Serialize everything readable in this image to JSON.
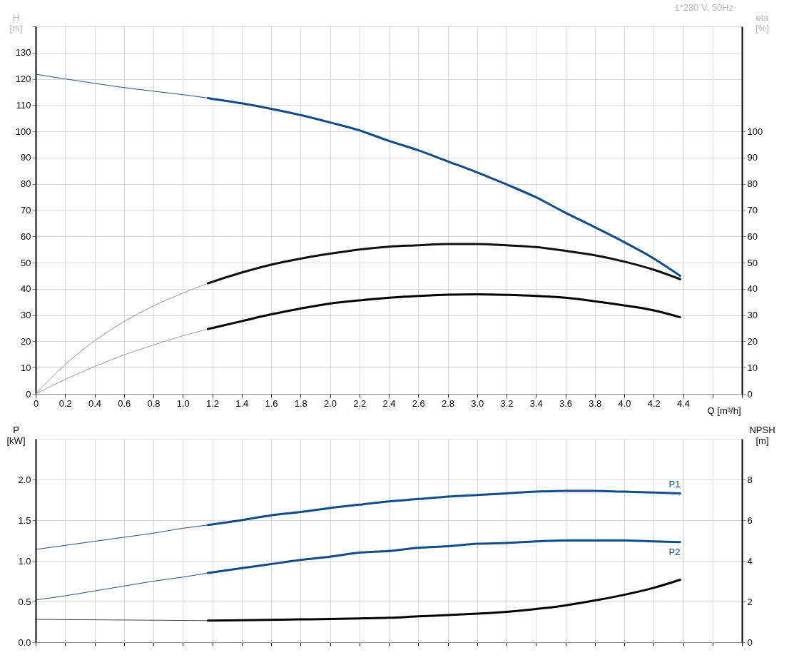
{
  "chart_data": [
    {
      "type": "line",
      "xlabel": "Q [m³/h]",
      "ylabel": "H\n[m]",
      "y2label": "eta\n[%]",
      "annotations": [
        "1*230 V, 50Hz"
      ],
      "grid": true,
      "xlim": [
        0,
        4.8
      ],
      "xticks": [
        0,
        0.2,
        0.4,
        0.6,
        0.8,
        {
          "value": 1,
          "label": "1.0"
        },
        1.2,
        1.4,
        1.6,
        1.8,
        {
          "value": 2,
          "label": "2.0"
        },
        2.2,
        2.4,
        2.6,
        2.8,
        {
          "value": 3,
          "label": "3.0"
        },
        3.2,
        3.4,
        3.6,
        3.8,
        {
          "value": 4,
          "label": "4.0"
        },
        4.2,
        4.4,
        {
          "value": 4.6,
          "label": null
        },
        {
          "value": 4.8,
          "label": null
        }
      ],
      "ylim": [
        0,
        140
      ],
      "yticks": [
        0,
        10,
        20,
        30,
        40,
        50,
        60,
        70,
        80,
        90,
        100,
        110,
        120,
        130,
        {
          "value": 140,
          "label": null
        }
      ],
      "y2lim": [
        0,
        140
      ],
      "y2ticks": [
        0,
        10,
        20,
        30,
        40,
        50,
        60,
        70,
        80,
        90,
        100
      ],
      "series": [
        {
          "color": "#1f4f86",
          "x": [
            0,
            0.2,
            0.4,
            0.6,
            0.8,
            1.0,
            1.17
          ],
          "values": [
            121.8,
            120.0,
            118.3,
            116.7,
            115.3,
            114.0,
            112.7
          ]
        },
        {
          "color": "#0f4c8a",
          "x": [
            1.17,
            1.4,
            1.6,
            1.8,
            2.0,
            2.2,
            2.4,
            2.6,
            2.8,
            3.0,
            3.2,
            3.4,
            3.6,
            3.8,
            4.0,
            4.2,
            4.38
          ],
          "values": [
            112.7,
            110.7,
            108.6,
            106.2,
            103.4,
            100.4,
            96.4,
            92.8,
            88.6,
            84.4,
            79.8,
            74.9,
            69.0,
            63.5,
            57.8,
            51.6,
            45.0
          ]
        },
        {
          "color": "#999999",
          "axis": "y2",
          "x": [
            0,
            0.2,
            0.4,
            0.6,
            0.8,
            1.0,
            1.17
          ],
          "values": [
            0,
            11.1,
            20.2,
            27.5,
            33.5,
            38.4,
            42.1
          ]
        },
        {
          "color": "#111111",
          "axis": "y2",
          "x": [
            1.17,
            1.4,
            1.6,
            1.8,
            2.0,
            2.2,
            2.4,
            2.6,
            2.8,
            3.0,
            3.2,
            3.4,
            3.6,
            3.8,
            4.0,
            4.2,
            4.38
          ],
          "values": [
            42.1,
            46.2,
            49.2,
            51.5,
            53.4,
            55.0,
            56.1,
            56.6,
            57.1,
            57.1,
            56.6,
            55.9,
            54.5,
            52.8,
            50.4,
            47.3,
            43.7
          ]
        },
        {
          "color": "#999999",
          "axis": "y2",
          "x": [
            0,
            0.2,
            0.4,
            0.6,
            0.8,
            1.0,
            1.17
          ],
          "values": [
            0,
            5.5,
            10.4,
            14.8,
            18.6,
            22.1,
            24.7
          ]
        },
        {
          "color": "#000000",
          "axis": "y2",
          "x": [
            1.17,
            1.4,
            1.6,
            1.8,
            2.0,
            2.2,
            2.4,
            2.6,
            2.8,
            3.0,
            3.2,
            3.4,
            3.6,
            3.8,
            4.0,
            4.2,
            4.38
          ],
          "values": [
            24.7,
            27.7,
            30.3,
            32.5,
            34.4,
            35.6,
            36.6,
            37.3,
            37.8,
            37.9,
            37.7,
            37.3,
            36.6,
            35.3,
            33.7,
            31.8,
            29.2
          ]
        }
      ]
    },
    {
      "type": "line",
      "ylabel": "P\n[kW]",
      "y2label": "NPSH\n[m]",
      "grid": true,
      "tick_labels": "y",
      "xlim": [
        0,
        4.8
      ],
      "xticks": [
        0,
        0.2,
        0.4,
        0.6,
        0.8,
        1,
        1.2,
        1.4,
        1.6,
        1.8,
        2,
        2.2,
        2.4,
        2.6,
        2.8,
        3,
        3.2,
        3.4,
        3.6,
        3.8,
        4,
        4.2,
        4.4,
        4.6,
        4.8
      ],
      "ylim": [
        0,
        2.5
      ],
      "yticks": [
        {
          "value": 0,
          "label": "0.0"
        },
        0.5,
        {
          "value": 1,
          "label": "1.0"
        },
        1.5,
        {
          "value": 2,
          "label": "2.0"
        }
      ],
      "y2lim": [
        0,
        10
      ],
      "y2ticks": [
        0,
        2,
        4,
        6,
        8
      ],
      "series": [
        {
          "color": "#1f4f86",
          "x": [
            0,
            0.2,
            0.4,
            0.6,
            0.8,
            1.0,
            1.17
          ],
          "values": [
            1.14,
            1.19,
            1.24,
            1.29,
            1.34,
            1.4,
            1.44
          ]
        },
        {
          "name": "P1",
          "color": "#0f4c8a",
          "x": [
            1.17,
            1.4,
            1.6,
            1.8,
            2.0,
            2.2,
            2.4,
            2.6,
            2.8,
            3.0,
            3.2,
            3.4,
            3.6,
            3.8,
            4.0,
            4.2,
            4.38
          ],
          "values": [
            1.44,
            1.5,
            1.56,
            1.6,
            1.65,
            1.69,
            1.73,
            1.76,
            1.79,
            1.81,
            1.83,
            1.85,
            1.86,
            1.86,
            1.85,
            1.84,
            1.83
          ]
        },
        {
          "color": "#1f4f86",
          "x": [
            0,
            0.2,
            0.4,
            0.6,
            0.8,
            1.0,
            1.17
          ],
          "values": [
            0.52,
            0.57,
            0.63,
            0.69,
            0.75,
            0.8,
            0.85
          ]
        },
        {
          "name": "P2",
          "color": "#0f4c8a",
          "x": [
            1.17,
            1.4,
            1.6,
            1.8,
            2.0,
            2.2,
            2.4,
            2.6,
            2.8,
            3.0,
            3.2,
            3.4,
            3.6,
            3.8,
            4.0,
            4.2,
            4.38
          ],
          "values": [
            0.85,
            0.91,
            0.96,
            1.01,
            1.05,
            1.1,
            1.12,
            1.16,
            1.18,
            1.21,
            1.22,
            1.24,
            1.25,
            1.25,
            1.25,
            1.24,
            1.23
          ]
        },
        {
          "color": "#444444",
          "axis": "y2",
          "x": [
            0,
            0.6,
            1.17
          ],
          "values": [
            1.12,
            1.09,
            1.06
          ]
        },
        {
          "color": "#000000",
          "axis": "y2",
          "x": [
            1.17,
            1.4,
            1.8,
            2.0,
            2.2,
            2.4,
            2.6,
            2.8,
            3.0,
            3.2,
            3.4,
            3.6,
            3.8,
            4.0,
            4.2,
            4.38
          ],
          "values": [
            1.06,
            1.08,
            1.12,
            1.14,
            1.17,
            1.2,
            1.27,
            1.33,
            1.4,
            1.49,
            1.63,
            1.81,
            2.05,
            2.33,
            2.67,
            3.07
          ]
        }
      ]
    }
  ]
}
